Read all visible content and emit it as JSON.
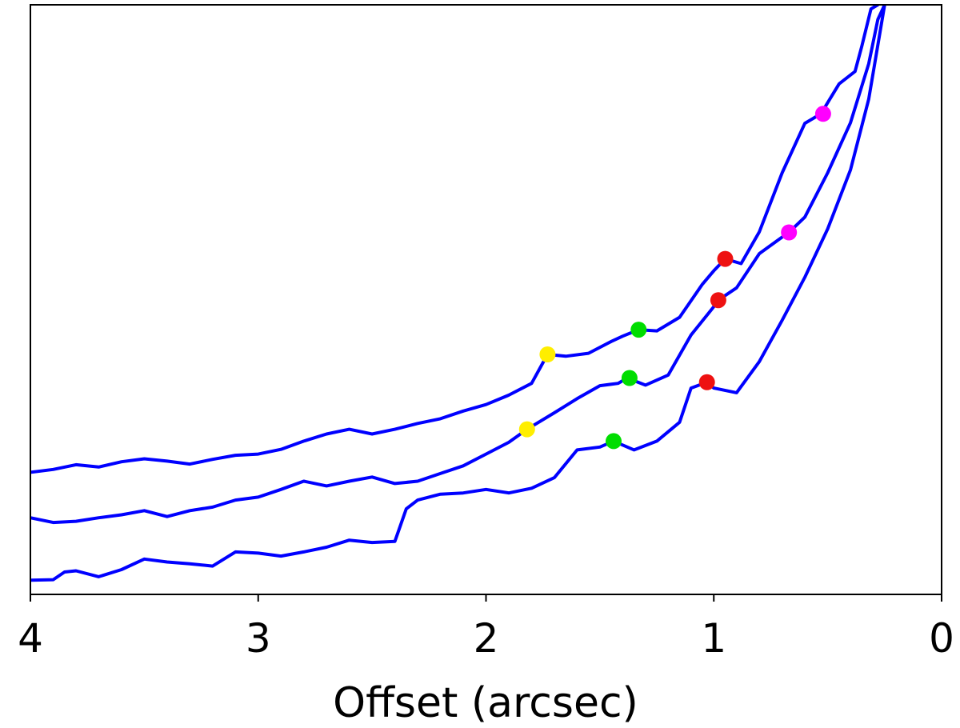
{
  "chart_data": {
    "type": "line",
    "title": "",
    "xlabel": "Offset (arcsec)",
    "ylabel": "",
    "xlim": [
      4,
      0
    ],
    "ylim": [
      0,
      10
    ],
    "x_reversed": true,
    "y_ticks_shown": false,
    "grid": false,
    "legend": "none",
    "x_ticks": [
      4,
      3,
      2,
      1,
      0
    ],
    "x_tick_labels": [
      "4",
      "3",
      "2",
      "1",
      "0"
    ],
    "line_color": "#0000ff",
    "series": [
      {
        "points": [
          [
            4.0,
            2.07
          ],
          [
            3.9,
            2.12
          ],
          [
            3.8,
            2.2
          ],
          [
            3.7,
            2.16
          ],
          [
            3.6,
            2.25
          ],
          [
            3.5,
            2.3
          ],
          [
            3.4,
            2.26
          ],
          [
            3.3,
            2.21
          ],
          [
            3.2,
            2.29
          ],
          [
            3.1,
            2.36
          ],
          [
            3.0,
            2.38
          ],
          [
            2.9,
            2.46
          ],
          [
            2.8,
            2.6
          ],
          [
            2.7,
            2.72
          ],
          [
            2.6,
            2.8
          ],
          [
            2.5,
            2.72
          ],
          [
            2.4,
            2.8
          ],
          [
            2.3,
            2.9
          ],
          [
            2.2,
            2.98
          ],
          [
            2.1,
            3.11
          ],
          [
            2.0,
            3.22
          ],
          [
            1.9,
            3.38
          ],
          [
            1.8,
            3.58
          ],
          [
            1.73,
            4.07
          ],
          [
            1.65,
            4.04
          ],
          [
            1.55,
            4.09
          ],
          [
            1.45,
            4.29
          ],
          [
            1.4,
            4.38
          ],
          [
            1.33,
            4.49
          ],
          [
            1.25,
            4.47
          ],
          [
            1.15,
            4.7
          ],
          [
            1.05,
            5.26
          ],
          [
            1.0,
            5.49
          ],
          [
            0.95,
            5.69
          ],
          [
            0.88,
            5.61
          ],
          [
            0.8,
            6.15
          ],
          [
            0.7,
            7.15
          ],
          [
            0.6,
            7.99
          ],
          [
            0.53,
            8.15
          ],
          [
            0.45,
            8.66
          ],
          [
            0.38,
            8.87
          ],
          [
            0.35,
            9.3
          ],
          [
            0.31,
            9.93
          ],
          [
            0.28,
            10.0
          ]
        ]
      },
      {
        "points": [
          [
            4.0,
            1.3
          ],
          [
            3.9,
            1.22
          ],
          [
            3.8,
            1.24
          ],
          [
            3.7,
            1.3
          ],
          [
            3.6,
            1.35
          ],
          [
            3.5,
            1.42
          ],
          [
            3.4,
            1.32
          ],
          [
            3.3,
            1.42
          ],
          [
            3.2,
            1.48
          ],
          [
            3.1,
            1.6
          ],
          [
            3.0,
            1.65
          ],
          [
            2.9,
            1.78
          ],
          [
            2.8,
            1.92
          ],
          [
            2.7,
            1.84
          ],
          [
            2.6,
            1.92
          ],
          [
            2.5,
            1.99
          ],
          [
            2.4,
            1.88
          ],
          [
            2.3,
            1.92
          ],
          [
            2.2,
            2.05
          ],
          [
            2.1,
            2.18
          ],
          [
            2.0,
            2.38
          ],
          [
            1.9,
            2.58
          ],
          [
            1.82,
            2.8
          ],
          [
            1.7,
            3.08
          ],
          [
            1.6,
            3.32
          ],
          [
            1.5,
            3.54
          ],
          [
            1.42,
            3.58
          ],
          [
            1.38,
            3.67
          ],
          [
            1.3,
            3.55
          ],
          [
            1.2,
            3.72
          ],
          [
            1.1,
            4.4
          ],
          [
            1.0,
            4.88
          ],
          [
            0.98,
            4.99
          ],
          [
            0.9,
            5.2
          ],
          [
            0.8,
            5.78
          ],
          [
            0.7,
            6.06
          ],
          [
            0.67,
            6.14
          ],
          [
            0.6,
            6.4
          ],
          [
            0.5,
            7.15
          ],
          [
            0.4,
            8.0
          ],
          [
            0.32,
            9.0
          ],
          [
            0.28,
            9.75
          ],
          [
            0.25,
            10.0
          ]
        ]
      },
      {
        "points": [
          [
            4.0,
            0.24
          ],
          [
            3.9,
            0.25
          ],
          [
            3.85,
            0.38
          ],
          [
            3.8,
            0.4
          ],
          [
            3.7,
            0.3
          ],
          [
            3.6,
            0.42
          ],
          [
            3.5,
            0.6
          ],
          [
            3.4,
            0.55
          ],
          [
            3.3,
            0.52
          ],
          [
            3.2,
            0.48
          ],
          [
            3.1,
            0.72
          ],
          [
            3.0,
            0.7
          ],
          [
            2.9,
            0.65
          ],
          [
            2.8,
            0.72
          ],
          [
            2.7,
            0.8
          ],
          [
            2.6,
            0.92
          ],
          [
            2.5,
            0.88
          ],
          [
            2.4,
            0.9
          ],
          [
            2.35,
            1.45
          ],
          [
            2.3,
            1.6
          ],
          [
            2.2,
            1.7
          ],
          [
            2.1,
            1.72
          ],
          [
            2.0,
            1.78
          ],
          [
            1.9,
            1.72
          ],
          [
            1.8,
            1.8
          ],
          [
            1.7,
            1.98
          ],
          [
            1.6,
            2.45
          ],
          [
            1.5,
            2.5
          ],
          [
            1.44,
            2.6
          ],
          [
            1.35,
            2.45
          ],
          [
            1.25,
            2.6
          ],
          [
            1.15,
            2.92
          ],
          [
            1.1,
            3.5
          ],
          [
            1.03,
            3.6
          ],
          [
            1.0,
            3.5
          ],
          [
            0.9,
            3.42
          ],
          [
            0.8,
            3.95
          ],
          [
            0.7,
            4.65
          ],
          [
            0.6,
            5.38
          ],
          [
            0.5,
            6.2
          ],
          [
            0.4,
            7.2
          ],
          [
            0.32,
            8.4
          ],
          [
            0.25,
            10.0
          ]
        ]
      }
    ],
    "markers": [
      {
        "x": 0.52,
        "y": 8.15,
        "color": "#ff00ff"
      },
      {
        "x": 0.95,
        "y": 5.69,
        "color": "#ee1111"
      },
      {
        "x": 1.33,
        "y": 4.49,
        "color": "#00dd00"
      },
      {
        "x": 1.73,
        "y": 4.07,
        "color": "#ffee00"
      },
      {
        "x": 0.67,
        "y": 6.14,
        "color": "#ff00ff"
      },
      {
        "x": 0.98,
        "y": 4.99,
        "color": "#ee1111"
      },
      {
        "x": 1.37,
        "y": 3.67,
        "color": "#00dd00"
      },
      {
        "x": 1.82,
        "y": 2.8,
        "color": "#ffee00"
      },
      {
        "x": 1.03,
        "y": 3.6,
        "color": "#ee1111"
      },
      {
        "x": 1.44,
        "y": 2.6,
        "color": "#00dd00"
      }
    ]
  }
}
